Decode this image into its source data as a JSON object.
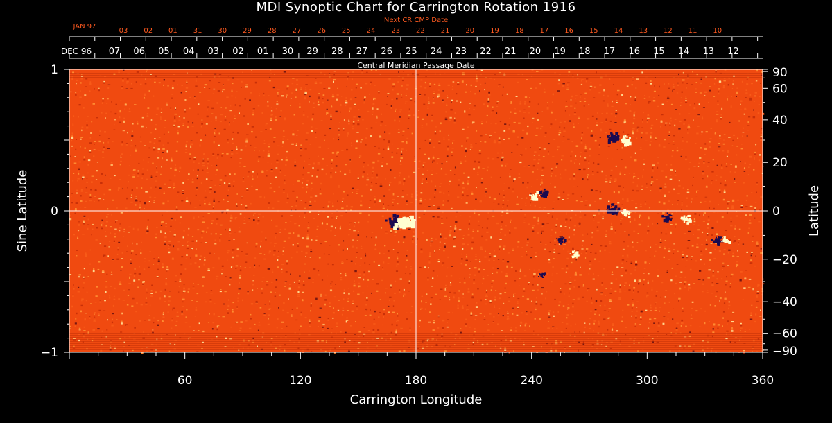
{
  "chart_data": {
    "type": "heatmap",
    "title": "MDI Synoptic Chart for Carrington Rotation 1916",
    "xlabel": "Carrington Longitude",
    "ylabel_left": "Sine Latitude",
    "ylabel_right": "Latitude",
    "xlim": [
      0,
      360
    ],
    "ylim": [
      -1,
      1
    ],
    "x_ticks": [
      60,
      120,
      180,
      240,
      300,
      360
    ],
    "y_ticks_left": [
      -1,
      0,
      1
    ],
    "y_tick_labels_left": [
      "−1",
      "0",
      "1"
    ],
    "y_ticks_right_deg": [
      90,
      60,
      40,
      20,
      0,
      -20,
      -40,
      -60,
      -90
    ],
    "y_tick_labels_right": [
      "90",
      "60",
      "40",
      "20",
      "0",
      "−20",
      "−40",
      "−60",
      "−90"
    ],
    "crosshair": {
      "x": 180,
      "y": 0
    },
    "top_axis_label": "Central Meridian Passage Date",
    "top_axis_month": "DEC 96",
    "top_axis_dates": [
      "07",
      "06",
      "05",
      "04",
      "03",
      "02",
      "01",
      "30",
      "29",
      "28",
      "27",
      "26",
      "25",
      "24",
      "23",
      "22",
      "21",
      "20",
      "19",
      "18",
      "17",
      "16",
      "15",
      "14",
      "13",
      "12"
    ],
    "next_axis_label": "Next CR CMP Date",
    "next_axis_month": "JAN 97",
    "next_axis_dates": [
      "03",
      "02",
      "01",
      "31",
      "30",
      "29",
      "28",
      "27",
      "26",
      "25",
      "24",
      "23",
      "22",
      "21",
      "20",
      "19",
      "18",
      "17",
      "16",
      "15",
      "14",
      "13",
      "12",
      "11",
      "10"
    ],
    "colors": {
      "background": "#000000",
      "field_base": "#f04a10",
      "positive_polarity": "#ffffd0",
      "negative_polarity": "#1a0a50",
      "axis": "#ffffff",
      "next_axis_text": "#ff5a20"
    },
    "active_regions": [
      {
        "lon": 168,
        "sin_lat": -0.07,
        "polarity": "negative",
        "strength": 1.0
      },
      {
        "lon": 175,
        "sin_lat": -0.07,
        "polarity": "positive",
        "strength": 1.0
      },
      {
        "lon": 171,
        "sin_lat": -0.09,
        "polarity": "positive",
        "strength": 0.8
      },
      {
        "lon": 281,
        "sin_lat": 0.53,
        "polarity": "negative",
        "strength": 0.8
      },
      {
        "lon": 288,
        "sin_lat": 0.5,
        "polarity": "positive",
        "strength": 0.7
      },
      {
        "lon": 241,
        "sin_lat": 0.11,
        "polarity": "positive",
        "strength": 0.6
      },
      {
        "lon": 246,
        "sin_lat": 0.13,
        "polarity": "negative",
        "strength": 0.6
      },
      {
        "lon": 282,
        "sin_lat": 0.02,
        "polarity": "negative",
        "strength": 0.7
      },
      {
        "lon": 289,
        "sin_lat": -0.01,
        "polarity": "positive",
        "strength": 0.5
      },
      {
        "lon": 310,
        "sin_lat": -0.04,
        "polarity": "negative",
        "strength": 0.5
      },
      {
        "lon": 320,
        "sin_lat": -0.05,
        "polarity": "positive",
        "strength": 0.5
      },
      {
        "lon": 336,
        "sin_lat": -0.2,
        "polarity": "negative",
        "strength": 0.6
      },
      {
        "lon": 340,
        "sin_lat": -0.2,
        "polarity": "positive",
        "strength": 0.5
      },
      {
        "lon": 255,
        "sin_lat": -0.2,
        "polarity": "negative",
        "strength": 0.4
      },
      {
        "lon": 262,
        "sin_lat": -0.3,
        "polarity": "positive",
        "strength": 0.4
      },
      {
        "lon": 245,
        "sin_lat": -0.45,
        "polarity": "negative",
        "strength": 0.3
      }
    ]
  }
}
